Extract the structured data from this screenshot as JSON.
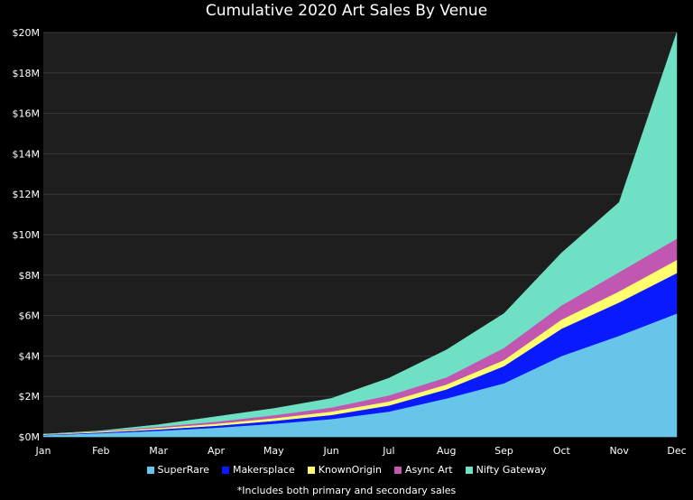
{
  "chart_data": {
    "type": "area",
    "stacked": true,
    "title": "Cumulative 2020 Art Sales By Venue",
    "footnote": "*Includes both primary and secondary sales",
    "categories": [
      "Jan",
      "Feb",
      "Mar",
      "Apr",
      "May",
      "Jun",
      "Jul",
      "Aug",
      "Sep",
      "Oct",
      "Nov",
      "Dec"
    ],
    "y_ticks": [
      "$0M",
      "$2M",
      "$4M",
      "$6M",
      "$8M",
      "$10M",
      "$12M",
      "$14M",
      "$16M",
      "$18M",
      "$20M"
    ],
    "ylim": [
      0,
      20
    ],
    "grid": true,
    "legend_position": "bottom",
    "series": [
      {
        "name": "SuperRare",
        "color": "#66c5e8",
        "values": [
          0.08,
          0.18,
          0.3,
          0.45,
          0.65,
          0.88,
          1.25,
          1.9,
          2.65,
          4.0,
          5.0,
          6.1
        ]
      },
      {
        "name": "Makersplace",
        "color": "#0a1aff",
        "values": [
          0.02,
          0.04,
          0.07,
          0.1,
          0.14,
          0.2,
          0.3,
          0.45,
          0.85,
          1.35,
          1.65,
          2.0
        ]
      },
      {
        "name": "KnownOrigin",
        "color": "#fffe6e",
        "values": [
          0.02,
          0.04,
          0.07,
          0.1,
          0.13,
          0.17,
          0.2,
          0.24,
          0.3,
          0.45,
          0.55,
          0.65
        ]
      },
      {
        "name": "Async Art",
        "color": "#c157b0",
        "values": [
          0.01,
          0.02,
          0.06,
          0.1,
          0.15,
          0.2,
          0.3,
          0.35,
          0.6,
          0.7,
          0.95,
          1.05
        ]
      },
      {
        "name": "Nifty Gateway",
        "color": "#6fe0c3",
        "values": [
          0.0,
          0.02,
          0.1,
          0.25,
          0.33,
          0.45,
          0.85,
          1.36,
          1.7,
          2.6,
          3.45,
          10.2
        ]
      }
    ]
  }
}
